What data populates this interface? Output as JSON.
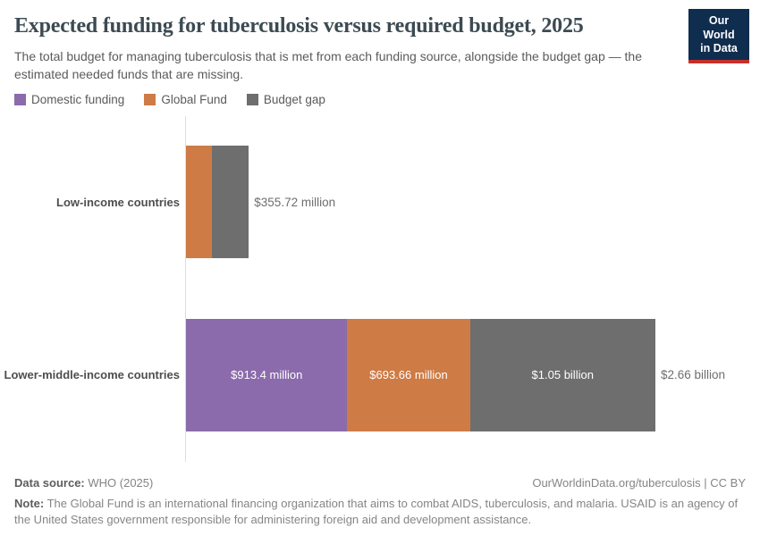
{
  "header": {
    "title": "Expected funding for tuberculosis versus required budget, 2025",
    "subtitle": "The total budget for managing tuberculosis that is met from each funding source, alongside the budget gap — the estimated needed funds that are missing.",
    "logo": {
      "line1": "Our World",
      "line2": "in Data",
      "bg_color": "#0F2D4E",
      "accent_color": "#C5302B"
    }
  },
  "legend": {
    "position": "top-left",
    "items": [
      {
        "label": "Domestic funding",
        "color": "#8B6BAB"
      },
      {
        "label": "Global Fund",
        "color": "#CE7B45"
      },
      {
        "label": "Budget gap",
        "color": "#6E6E6E"
      }
    ]
  },
  "chart_data": {
    "type": "bar",
    "orientation": "horizontal",
    "stacked": true,
    "unit": "US$",
    "grid": false,
    "title": "Expected funding for tuberculosis versus required budget, 2025",
    "categories": [
      "Low-income countries",
      "Lower-middle-income countries"
    ],
    "series": [
      {
        "name": "Domestic funding",
        "values": [
          0,
          913.4
        ]
      },
      {
        "name": "Global Fund",
        "values": [
          148,
          693.66
        ]
      },
      {
        "name": "Budget gap",
        "values": [
          207.72,
          1050
        ]
      }
    ],
    "segment_labels": [
      [
        "",
        "",
        ""
      ],
      [
        "$913.4 million",
        "$693.66 million",
        "$1.05 billion"
      ]
    ],
    "totals": [
      {
        "value": 355.72,
        "label": "$355.72 million"
      },
      {
        "value": 2657.06,
        "label": "$2.66 billion"
      }
    ]
  },
  "footer": {
    "source_label": "Data source:",
    "source_value": "WHO (2025)",
    "link": "OurWorldinData.org/tuberculosis | CC BY",
    "note_label": "Note:",
    "note_text": "The Global Fund is an international financing organization that aims to combat AIDS, tuberculosis, and malaria. USAID is an agency of the United States government responsible for administering foreign aid and development assistance."
  }
}
